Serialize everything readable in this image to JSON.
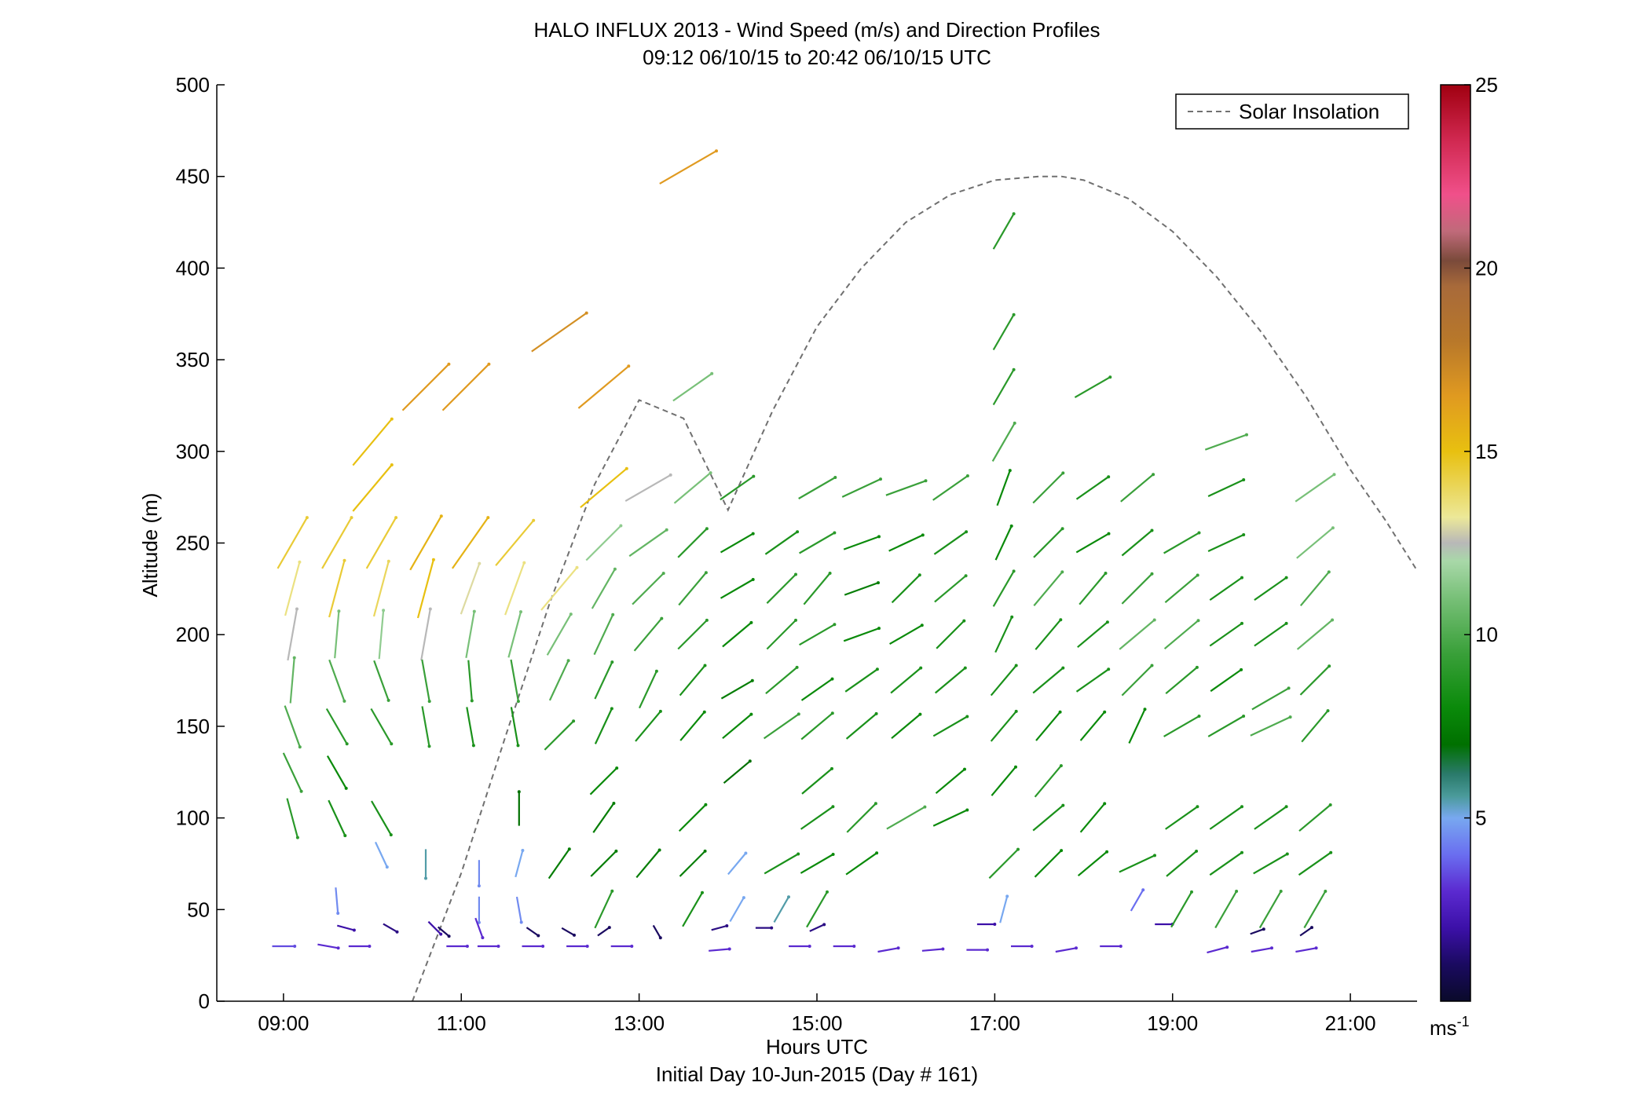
{
  "chart_data": {
    "type": "scatter",
    "title": "HALO INFLUX 2013 - Wind Speed (m/s) and Direction Profiles",
    "subtitle": "09:12 06/10/15 to 20:42 06/10/15  UTC",
    "xlabel": "Hours UTC",
    "xlabel2": "Initial Day 10-Jun-2015 (Day # 161)",
    "ylabel": "Altitude (m)",
    "xlim": [
      8.25,
      21.75
    ],
    "ylim": [
      0,
      500
    ],
    "x_ticks": [
      9,
      11,
      13,
      15,
      17,
      19,
      21
    ],
    "x_tick_labels": [
      "09:00",
      "11:00",
      "13:00",
      "15:00",
      "17:00",
      "19:00",
      "21:00"
    ],
    "y_ticks": [
      0,
      50,
      100,
      150,
      200,
      250,
      300,
      350,
      400,
      450,
      500
    ],
    "y_tick_labels": [
      "0",
      "50",
      "100",
      "150",
      "200",
      "250",
      "300",
      "350",
      "400",
      "450",
      "500"
    ],
    "legend": {
      "label": "Solar Insolation",
      "placement": "top-right",
      "style": "dashed gray line"
    },
    "colorbar": {
      "min": 0,
      "max": 25,
      "ticks": [
        5,
        10,
        15,
        20,
        25
      ],
      "tick_labels": [
        "5",
        "10",
        "15",
        "20",
        "25"
      ],
      "unit": "ms",
      "unit_sup": "-1"
    },
    "colors": {
      "insolation": "#707070",
      "axis": "#000000"
    },
    "solar_insolation": {
      "t": [
        10.45,
        11,
        11.5,
        12,
        12.5,
        13,
        13.5,
        14,
        14.5,
        15,
        15.5,
        16,
        16.5,
        17,
        17.5,
        17.75,
        18,
        18.5,
        19,
        19.5,
        20,
        20.5,
        21,
        21.4,
        21.75
      ],
      "alt": [
        0,
        70,
        145,
        218,
        282,
        328,
        318,
        268,
        322,
        368,
        400,
        425,
        440,
        448,
        450,
        450,
        448,
        438,
        420,
        395,
        365,
        330,
        290,
        262,
        235
      ]
    },
    "series_note": "wind barbs: t = hours UTC, alt = m, speed = m/s, dir = degrees the arrow points (0 = up/north, 90 = right/east)",
    "barbs": [
      [
        9,
        30,
        3.5,
        90
      ],
      [
        9.1,
        250,
        14.5,
        30
      ],
      [
        9.1,
        225,
        13.5,
        15
      ],
      [
        9.1,
        200,
        12.5,
        10
      ],
      [
        9.1,
        175,
        10.5,
        5
      ],
      [
        9.1,
        150,
        10,
        160
      ],
      [
        9.1,
        125,
        9.5,
        155
      ],
      [
        9.1,
        100,
        9,
        165
      ],
      [
        9.5,
        30,
        3,
        100
      ],
      [
        9.6,
        250,
        14.5,
        30
      ],
      [
        9.6,
        225,
        14.5,
        15
      ],
      [
        9.6,
        200,
        11,
        5
      ],
      [
        9.6,
        175,
        10,
        160
      ],
      [
        9.6,
        150,
        9,
        150
      ],
      [
        9.6,
        125,
        8,
        150
      ],
      [
        9.6,
        100,
        8.5,
        155
      ],
      [
        9.6,
        55,
        4.5,
        175
      ],
      [
        9.7,
        40,
        2,
        105
      ],
      [
        9.85,
        30,
        3,
        90
      ],
      [
        10.1,
        250,
        14.5,
        30
      ],
      [
        10.1,
        225,
        14,
        15
      ],
      [
        10.1,
        200,
        11.5,
        5
      ],
      [
        10.1,
        175,
        9.5,
        160
      ],
      [
        10.1,
        150,
        9,
        150
      ],
      [
        10.1,
        100,
        8.5,
        150
      ],
      [
        10,
        305,
        15,
        40
      ],
      [
        10,
        280,
        15,
        40
      ],
      [
        10.1,
        80,
        5,
        155
      ],
      [
        10.2,
        40,
        1.5,
        120
      ],
      [
        10.6,
        250,
        15.5,
        30
      ],
      [
        10.6,
        225,
        15,
        15
      ],
      [
        10.6,
        200,
        12.5,
        10
      ],
      [
        10.6,
        175,
        9.5,
        170
      ],
      [
        10.6,
        150,
        9,
        170
      ],
      [
        10.6,
        75,
        5.5,
        180
      ],
      [
        10.6,
        335,
        16.5,
        45
      ],
      [
        10.8,
        38,
        1,
        130
      ],
      [
        10.7,
        40,
        2,
        135
      ],
      [
        10.95,
        30,
        3,
        90
      ],
      [
        11.1,
        250,
        15.5,
        35
      ],
      [
        11.1,
        225,
        13,
        20
      ],
      [
        11.1,
        200,
        11,
        10
      ],
      [
        11.1,
        175,
        9,
        175
      ],
      [
        11.1,
        150,
        8.5,
        170
      ],
      [
        11.05,
        335,
        16.5,
        45
      ],
      [
        11.2,
        70,
        4.5,
        180
      ],
      [
        11.2,
        50,
        4.5,
        180
      ],
      [
        11.2,
        40,
        3,
        160
      ],
      [
        11.3,
        30,
        3,
        90
      ],
      [
        11.6,
        250,
        14.5,
        40
      ],
      [
        11.6,
        225,
        13.5,
        20
      ],
      [
        11.6,
        200,
        11,
        15
      ],
      [
        11.6,
        175,
        9.5,
        170
      ],
      [
        11.6,
        150,
        8.5,
        170
      ],
      [
        11.65,
        105,
        7,
        0
      ],
      [
        11.65,
        75,
        5,
        15
      ],
      [
        11.65,
        50,
        4.5,
        170
      ],
      [
        11.8,
        38,
        1,
        125
      ],
      [
        11.8,
        30,
        3,
        90
      ],
      [
        12.1,
        225,
        13.5,
        40
      ],
      [
        12.1,
        200,
        11,
        30
      ],
      [
        12.1,
        175,
        10,
        25
      ],
      [
        12.1,
        145,
        9,
        45
      ],
      [
        12.1,
        75,
        7.5,
        35
      ],
      [
        12.1,
        365,
        17,
        55
      ],
      [
        12.2,
        38,
        1,
        120
      ],
      [
        12.3,
        30,
        3,
        90
      ],
      [
        12.6,
        280,
        15,
        50
      ],
      [
        12.6,
        250,
        11.5,
        45
      ],
      [
        12.6,
        225,
        10.5,
        30
      ],
      [
        12.6,
        200,
        10,
        25
      ],
      [
        12.6,
        175,
        9,
        25
      ],
      [
        12.6,
        150,
        8.5,
        25
      ],
      [
        12.6,
        120,
        8,
        45
      ],
      [
        12.6,
        100,
        7.5,
        35
      ],
      [
        12.6,
        75,
        7.5,
        45
      ],
      [
        12.6,
        50,
        9,
        25
      ],
      [
        12.6,
        335,
        16.5,
        50
      ],
      [
        12.6,
        38,
        1,
        55
      ],
      [
        12.8,
        30,
        3,
        90
      ],
      [
        13.1,
        280,
        12.5,
        60
      ],
      [
        13.1,
        250,
        10.5,
        55
      ],
      [
        13.1,
        225,
        10,
        45
      ],
      [
        13.1,
        200,
        9.5,
        40
      ],
      [
        13.1,
        170,
        9,
        25
      ],
      [
        13.1,
        150,
        8.5,
        40
      ],
      [
        13.1,
        75,
        7.5,
        40
      ],
      [
        13.2,
        38,
        1,
        150
      ],
      [
        13.6,
        280,
        11,
        50
      ],
      [
        13.6,
        250,
        9,
        45
      ],
      [
        13.6,
        225,
        9.5,
        40
      ],
      [
        13.6,
        200,
        9,
        45
      ],
      [
        13.6,
        175,
        8.5,
        40
      ],
      [
        13.6,
        150,
        8,
        40
      ],
      [
        13.6,
        100,
        8,
        45
      ],
      [
        13.6,
        75,
        7.5,
        45
      ],
      [
        13.6,
        50,
        8.5,
        30
      ],
      [
        13.55,
        455,
        16.5,
        60
      ],
      [
        13.6,
        335,
        11,
        55
      ],
      [
        13.9,
        40,
        1.5,
        75
      ],
      [
        13.9,
        28,
        3,
        85
      ],
      [
        14.1,
        280,
        9,
        55
      ],
      [
        14.1,
        250,
        8,
        60
      ],
      [
        14.1,
        225,
        8,
        60
      ],
      [
        14.1,
        200,
        8,
        50
      ],
      [
        14.1,
        170,
        7.5,
        60
      ],
      [
        14.1,
        150,
        8,
        50
      ],
      [
        14.1,
        125,
        7,
        50
      ],
      [
        14.1,
        75,
        5,
        40
      ],
      [
        14.1,
        50,
        5,
        30
      ],
      [
        14.4,
        40,
        1.5,
        90
      ],
      [
        14.6,
        250,
        8.5,
        55
      ],
      [
        14.6,
        225,
        9,
        45
      ],
      [
        14.6,
        200,
        9,
        45
      ],
      [
        14.6,
        175,
        9,
        50
      ],
      [
        14.6,
        150,
        9.5,
        55
      ],
      [
        14.6,
        75,
        8.5,
        60
      ],
      [
        14.6,
        50,
        5.5,
        30
      ],
      [
        14.8,
        30,
        3,
        90
      ],
      [
        15,
        280,
        9.5,
        60
      ],
      [
        15,
        250,
        9,
        60
      ],
      [
        15,
        225,
        9,
        40
      ],
      [
        15,
        200,
        9,
        60
      ],
      [
        15,
        170,
        8,
        55
      ],
      [
        15,
        150,
        9,
        50
      ],
      [
        15,
        120,
        8.5,
        50
      ],
      [
        15,
        100,
        8.5,
        55
      ],
      [
        15,
        75,
        8,
        60
      ],
      [
        15,
        50,
        9,
        30
      ],
      [
        15,
        40,
        1.5,
        65
      ],
      [
        15.3,
        30,
        3,
        90
      ],
      [
        15.5,
        280,
        9.5,
        65
      ],
      [
        15.5,
        250,
        8,
        70
      ],
      [
        15.5,
        225,
        7.5,
        70
      ],
      [
        15.5,
        200,
        8,
        70
      ],
      [
        15.5,
        175,
        8.5,
        55
      ],
      [
        15.5,
        150,
        8.5,
        50
      ],
      [
        15.5,
        100,
        9,
        45
      ],
      [
        15.5,
        75,
        8,
        55
      ],
      [
        15.8,
        28,
        3,
        80
      ],
      [
        16,
        280,
        9.5,
        70
      ],
      [
        16,
        250,
        8,
        65
      ],
      [
        16,
        225,
        8.5,
        45
      ],
      [
        16,
        200,
        8,
        60
      ],
      [
        16,
        175,
        8.5,
        50
      ],
      [
        16,
        150,
        8,
        50
      ],
      [
        16,
        100,
        10,
        60
      ],
      [
        16.3,
        28,
        3,
        85
      ],
      [
        16.5,
        280,
        9.5,
        55
      ],
      [
        16.5,
        250,
        8.5,
        55
      ],
      [
        16.5,
        225,
        9,
        50
      ],
      [
        16.5,
        200,
        8.5,
        45
      ],
      [
        16.5,
        175,
        8.5,
        50
      ],
      [
        16.5,
        150,
        8.5,
        60
      ],
      [
        16.5,
        120,
        8,
        50
      ],
      [
        16.5,
        100,
        8,
        65
      ],
      [
        16.8,
        28,
        3,
        90
      ],
      [
        17.1,
        420,
        9,
        30
      ],
      [
        17.1,
        365,
        9,
        30
      ],
      [
        17.1,
        335,
        9,
        30
      ],
      [
        17.1,
        305,
        10,
        30
      ],
      [
        17.1,
        280,
        8,
        20
      ],
      [
        17.1,
        250,
        8,
        25
      ],
      [
        17.1,
        225,
        9,
        30
      ],
      [
        17.1,
        200,
        8.5,
        25
      ],
      [
        17.1,
        175,
        8.5,
        40
      ],
      [
        17.1,
        150,
        8.5,
        40
      ],
      [
        17.1,
        120,
        8,
        40
      ],
      [
        17.1,
        75,
        9,
        45
      ],
      [
        17.1,
        50,
        5,
        15
      ],
      [
        16.9,
        42,
        2,
        90
      ],
      [
        17.3,
        30,
        3,
        90
      ],
      [
        17.6,
        280,
        9.5,
        45
      ],
      [
        17.6,
        250,
        9,
        45
      ],
      [
        17.6,
        225,
        10,
        40
      ],
      [
        17.6,
        200,
        8.5,
        40
      ],
      [
        17.6,
        175,
        8.5,
        50
      ],
      [
        17.6,
        150,
        8,
        40
      ],
      [
        17.6,
        120,
        9,
        40
      ],
      [
        17.6,
        100,
        8.5,
        50
      ],
      [
        17.6,
        75,
        8,
        45
      ],
      [
        17.8,
        28,
        3,
        80
      ],
      [
        18.1,
        335,
        9,
        60
      ],
      [
        18.1,
        280,
        8.5,
        55
      ],
      [
        18.1,
        250,
        8,
        60
      ],
      [
        18.1,
        225,
        9,
        40
      ],
      [
        18.1,
        200,
        8.5,
        50
      ],
      [
        18.1,
        175,
        8.5,
        55
      ],
      [
        18.1,
        150,
        8,
        40
      ],
      [
        18.1,
        100,
        8,
        40
      ],
      [
        18.1,
        75,
        8,
        50
      ],
      [
        18.3,
        30,
        3,
        90
      ],
      [
        18.6,
        280,
        9.5,
        50
      ],
      [
        18.6,
        250,
        8.5,
        50
      ],
      [
        18.6,
        225,
        9.5,
        45
      ],
      [
        18.6,
        200,
        10.5,
        50
      ],
      [
        18.6,
        175,
        9.5,
        45
      ],
      [
        18.6,
        150,
        8,
        25
      ],
      [
        18.6,
        75,
        8.5,
        65
      ],
      [
        18.6,
        55,
        4,
        30
      ],
      [
        18.9,
        42,
        2,
        90
      ],
      [
        19.1,
        250,
        9,
        60
      ],
      [
        19.1,
        225,
        9.5,
        50
      ],
      [
        19.1,
        200,
        10,
        50
      ],
      [
        19.1,
        175,
        9,
        50
      ],
      [
        19.1,
        150,
        9,
        60
      ],
      [
        19.1,
        100,
        8.5,
        55
      ],
      [
        19.1,
        75,
        8.5,
        50
      ],
      [
        19.1,
        50,
        9,
        30
      ],
      [
        19.5,
        28,
        3,
        75
      ],
      [
        19.6,
        305,
        10,
        70
      ],
      [
        19.6,
        280,
        8.5,
        65
      ],
      [
        19.6,
        250,
        8.5,
        65
      ],
      [
        19.6,
        225,
        8.5,
        55
      ],
      [
        19.6,
        200,
        8.5,
        55
      ],
      [
        19.6,
        175,
        8,
        55
      ],
      [
        19.6,
        150,
        9,
        60
      ],
      [
        19.6,
        100,
        8.5,
        55
      ],
      [
        19.6,
        75,
        8.5,
        55
      ],
      [
        19.6,
        50,
        9.5,
        30
      ],
      [
        19.95,
        38,
        1,
        70
      ],
      [
        20,
        28,
        3,
        80
      ],
      [
        20.1,
        225,
        8.5,
        55
      ],
      [
        20.1,
        200,
        8.5,
        55
      ],
      [
        20.1,
        165,
        9.5,
        60
      ],
      [
        20.1,
        150,
        10,
        65
      ],
      [
        20.1,
        100,
        8.5,
        55
      ],
      [
        20.1,
        75,
        8.5,
        60
      ],
      [
        20.1,
        50,
        9.5,
        30
      ],
      [
        20.5,
        28,
        3,
        80
      ],
      [
        20.6,
        280,
        11,
        55
      ],
      [
        20.6,
        250,
        11,
        50
      ],
      [
        20.6,
        225,
        10,
        40
      ],
      [
        20.6,
        200,
        10.5,
        50
      ],
      [
        20.6,
        175,
        9,
        45
      ],
      [
        20.6,
        150,
        9,
        40
      ],
      [
        20.6,
        100,
        9,
        50
      ],
      [
        20.6,
        75,
        8.5,
        55
      ],
      [
        20.6,
        50,
        9.5,
        30
      ],
      [
        20.5,
        38,
        1,
        55
      ]
    ]
  }
}
